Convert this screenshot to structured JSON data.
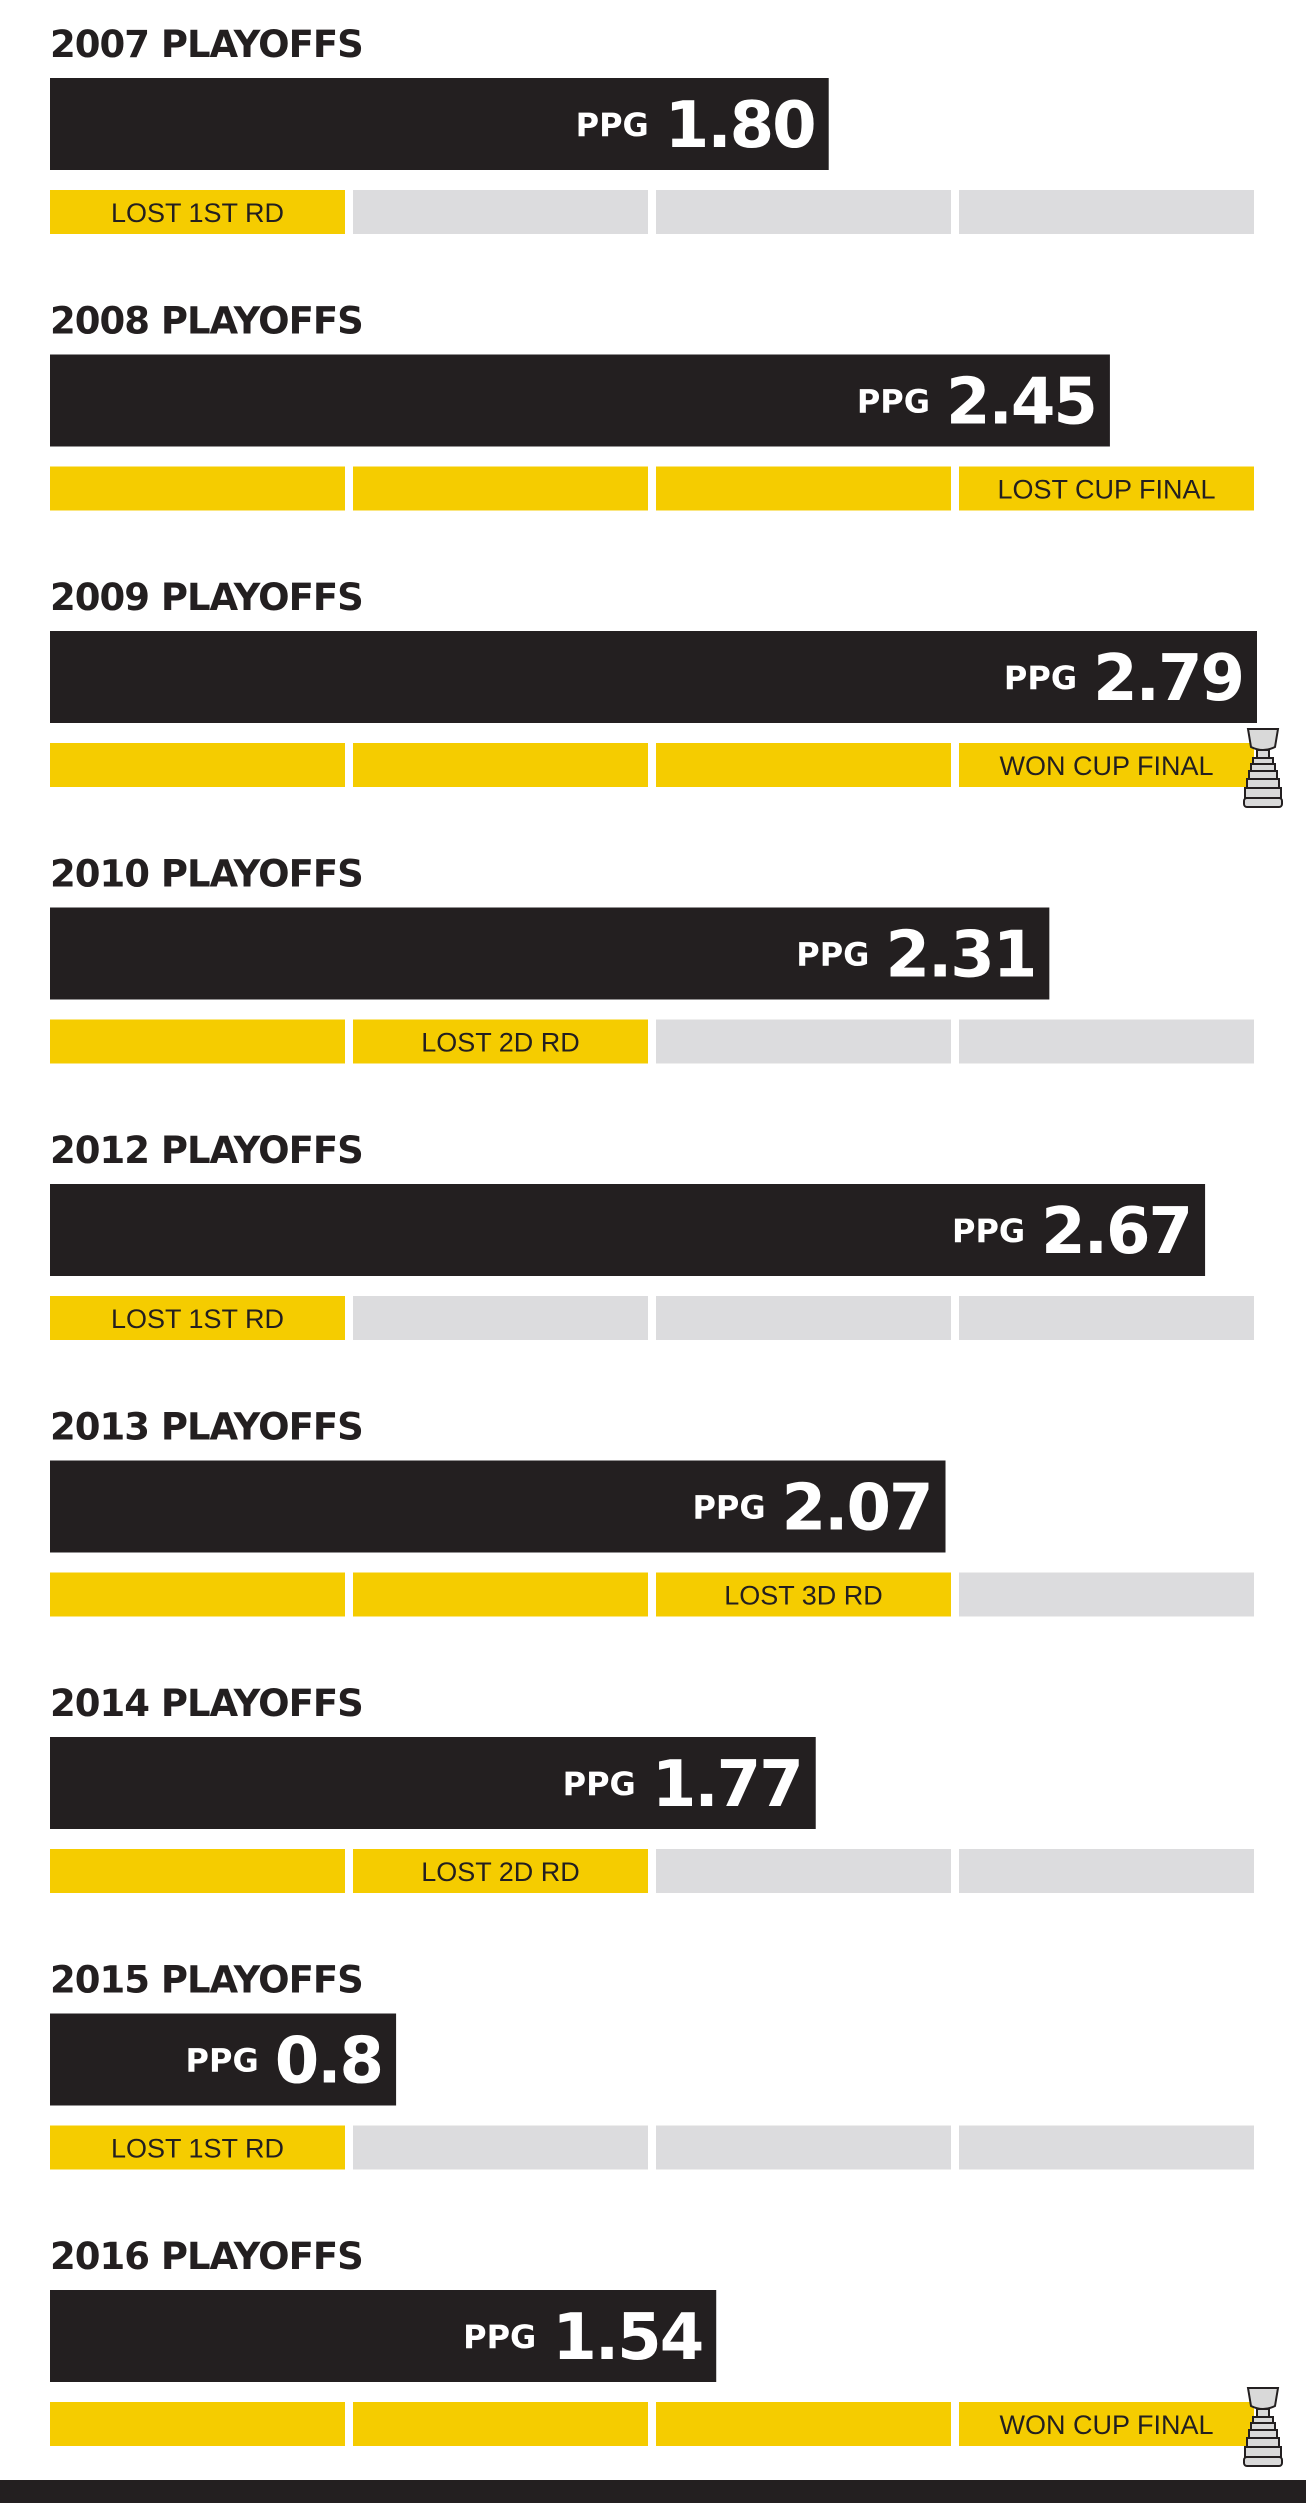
{
  "colors": {
    "bar": "#231f20",
    "reached": "#f5cc00",
    "not_reached": "#dcdcde",
    "text_dark": "#231f20",
    "text_light": "#ffffff",
    "footer": "#231f20"
  },
  "icons": {
    "cup_won": "trophy-icon"
  },
  "chart_data": {
    "type": "bar",
    "orientation": "horizontal",
    "xlim": [
      0,
      2.79
    ],
    "rounds_total": 4,
    "value_prefix": "PPG",
    "seasons": [
      {
        "title": "2007 PLAYOFFS",
        "ppg": 1.8,
        "ppg_label": "1.80",
        "rounds_reached": 1,
        "result": "LOST 1ST RD",
        "won_cup": false
      },
      {
        "title": "2008 PLAYOFFS",
        "ppg": 2.45,
        "ppg_label": "2.45",
        "rounds_reached": 4,
        "result": "LOST CUP FINAL",
        "won_cup": false
      },
      {
        "title": "2009 PLAYOFFS",
        "ppg": 2.79,
        "ppg_label": "2.79",
        "rounds_reached": 4,
        "result": "WON CUP FINAL",
        "won_cup": true
      },
      {
        "title": "2010 PLAYOFFS",
        "ppg": 2.31,
        "ppg_label": "2.31",
        "rounds_reached": 2,
        "result": "LOST 2D RD",
        "won_cup": false
      },
      {
        "title": "2012 PLAYOFFS",
        "ppg": 2.67,
        "ppg_label": "2.67",
        "rounds_reached": 1,
        "result": "LOST 1ST RD",
        "won_cup": false
      },
      {
        "title": "2013 PLAYOFFS",
        "ppg": 2.07,
        "ppg_label": "2.07",
        "rounds_reached": 3,
        "result": "LOST 3D RD",
        "won_cup": false
      },
      {
        "title": "2014 PLAYOFFS",
        "ppg": 1.77,
        "ppg_label": "1.77",
        "rounds_reached": 2,
        "result": "LOST 2D RD",
        "won_cup": false
      },
      {
        "title": "2015 PLAYOFFS",
        "ppg": 0.8,
        "ppg_label": "0.8",
        "rounds_reached": 1,
        "result": "LOST 1ST RD",
        "won_cup": false
      },
      {
        "title": "2016 PLAYOFFS",
        "ppg": 1.54,
        "ppg_label": "1.54",
        "rounds_reached": 4,
        "result": "WON CUP FINAL",
        "won_cup": true
      }
    ]
  }
}
